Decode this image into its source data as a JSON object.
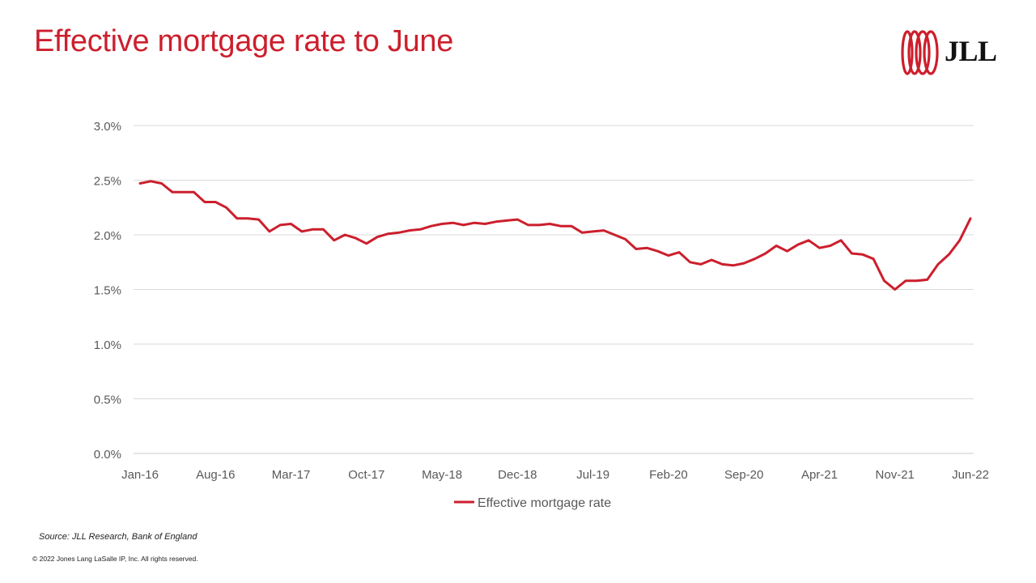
{
  "header": {
    "title": "Effective mortgage rate to June",
    "logo_text": "JLL",
    "brand_color": "#cc1f2d"
  },
  "footer": {
    "source": "Source: JLL Research, Bank of England",
    "copyright": "© 2022 Jones Lang LaSalle IP, Inc. All rights reserved."
  },
  "chart_data": {
    "type": "line",
    "title": "",
    "xlabel": "",
    "ylabel": "",
    "ylim": [
      0,
      0.03
    ],
    "y_ticks": [
      "0.0%",
      "0.5%",
      "1.0%",
      "1.5%",
      "2.0%",
      "2.5%",
      "3.0%"
    ],
    "y_tick_values": [
      0,
      0.005,
      0.01,
      0.015,
      0.02,
      0.025,
      0.03
    ],
    "x_tick_labels": [
      "Jan-16",
      "Aug-16",
      "Mar-17",
      "Oct-17",
      "May-18",
      "Dec-18",
      "Jul-19",
      "Feb-20",
      "Sep-20",
      "Apr-21",
      "Nov-21",
      "Jun-22"
    ],
    "grid": true,
    "legend": "bottom",
    "series": [
      {
        "name": "Effective mortgage rate",
        "color": "#cc1f2d",
        "x_start": "Jan-16",
        "x_end": "Jun-22",
        "values": [
          2.47,
          2.49,
          2.47,
          2.39,
          2.39,
          2.39,
          2.3,
          2.3,
          2.25,
          2.15,
          2.15,
          2.14,
          2.03,
          2.09,
          2.1,
          2.03,
          2.05,
          2.05,
          1.95,
          2.0,
          1.97,
          1.92,
          1.98,
          2.01,
          2.02,
          2.04,
          2.05,
          2.08,
          2.1,
          2.11,
          2.09,
          2.11,
          2.1,
          2.12,
          2.13,
          2.14,
          2.09,
          2.09,
          2.1,
          2.08,
          2.08,
          2.02,
          2.03,
          2.04,
          2.0,
          1.96,
          1.87,
          1.88,
          1.85,
          1.81,
          1.84,
          1.75,
          1.73,
          1.77,
          1.73,
          1.72,
          1.74,
          1.78,
          1.83,
          1.9,
          1.85,
          1.91,
          1.95,
          1.88,
          1.9,
          1.95,
          1.83,
          1.82,
          1.78,
          1.58,
          1.5,
          1.58,
          1.58,
          1.59,
          1.73,
          1.82,
          1.95,
          2.15
        ]
      }
    ]
  }
}
